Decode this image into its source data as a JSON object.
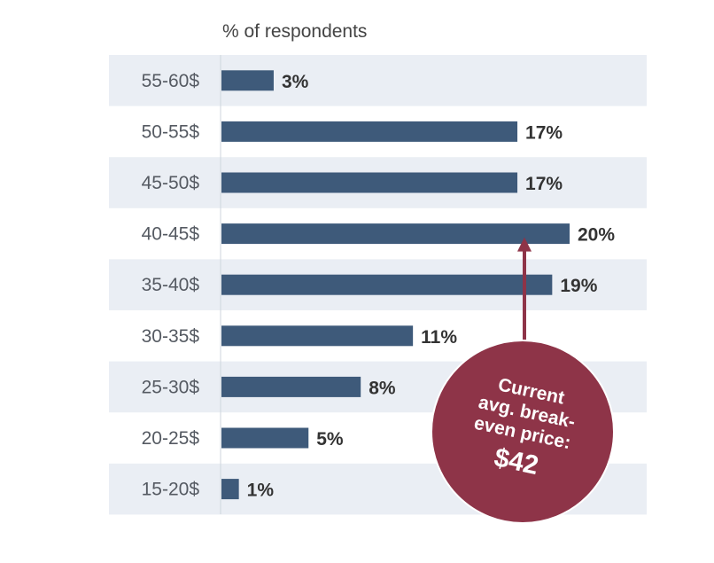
{
  "chart_data": {
    "type": "bar",
    "orientation": "horizontal",
    "xlabel": "% of respondents",
    "categories": [
      "55-60$",
      "50-55$",
      "45-50$",
      "40-45$",
      "35-40$",
      "30-35$",
      "25-30$",
      "20-25$",
      "15-20$"
    ],
    "values": [
      3,
      17,
      17,
      20,
      19,
      11,
      8,
      5,
      1
    ],
    "value_labels": [
      "3%",
      "17%",
      "17%",
      "20%",
      "19%",
      "11%",
      "8%",
      "5%",
      "1%"
    ],
    "xlim": [
      0,
      20
    ],
    "bar_color": "#3e5a7a",
    "band_color": "#eaeef4",
    "annotation": {
      "lines": [
        "Current",
        "avg. break-",
        "even price:",
        "$42"
      ],
      "points_to": "40-45$",
      "color": "#8e3448"
    }
  }
}
